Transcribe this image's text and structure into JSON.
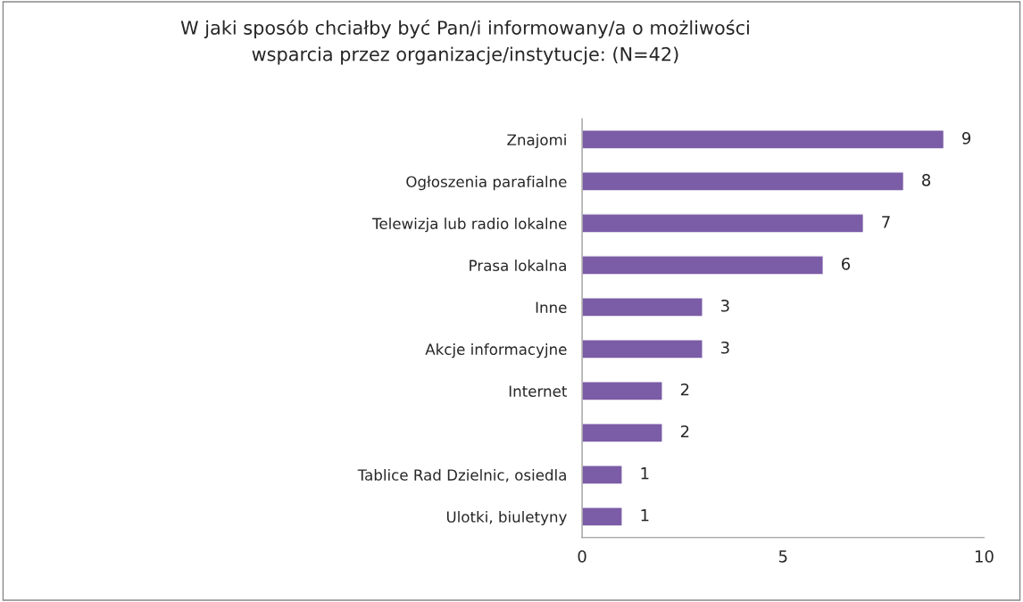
{
  "chart_data": {
    "type": "bar",
    "orientation": "horizontal",
    "title": "W jaki sposób chciałby być Pan/i informowany/a o możliwości\nwsparcia przez organizacje/instytucje: (N=42)",
    "categories": [
      "Znajomi",
      "Ogłoszenia parafialne",
      "Telewizja lub radio lokalne",
      "Prasa lokalna",
      "Inne",
      "Akcje informacyjne",
      "Internet",
      null,
      "Tablice Rad Dzielnic, osiedla",
      "Ulotki, biuletyny"
    ],
    "values": [
      9,
      8,
      7,
      6,
      3,
      3,
      2,
      2,
      1,
      1
    ],
    "color": "#7b5ca6",
    "xlim": [
      0,
      10
    ],
    "xticks": [
      0,
      5,
      10
    ],
    "data_labels": true
  }
}
